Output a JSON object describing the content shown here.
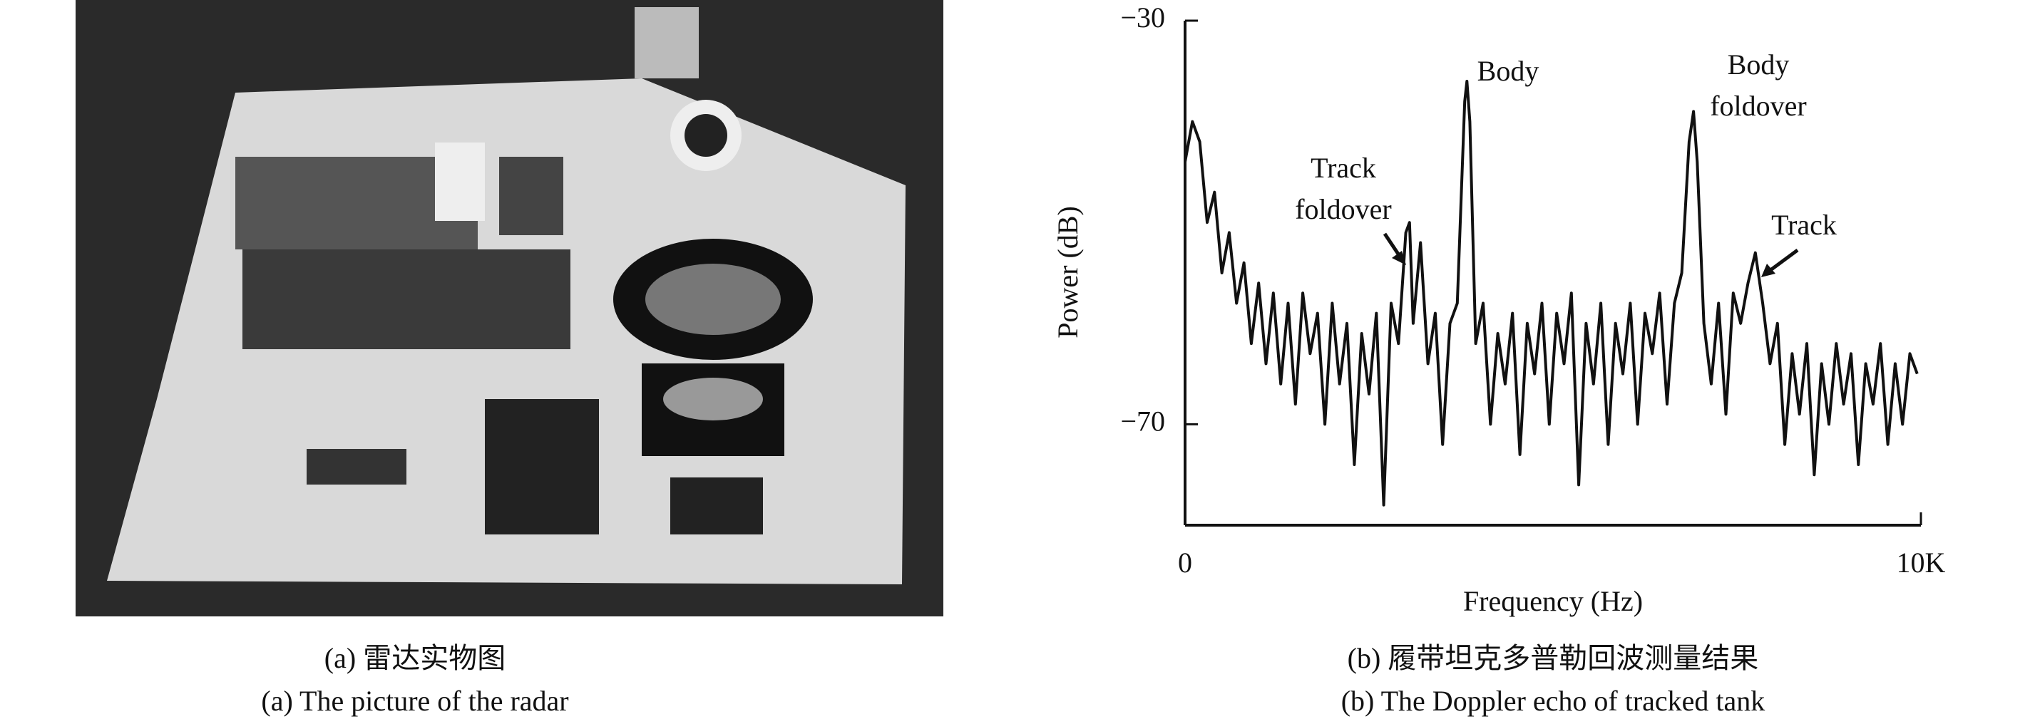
{
  "chart_data": {
    "type": "line",
    "y_label": "Power (dB)",
    "x_label": "Frequency (Hz)",
    "x": [
      0,
      100,
      200,
      300,
      400,
      500,
      600,
      700,
      800,
      900,
      1000,
      1100,
      1200,
      1300,
      1400,
      1500,
      1600,
      1700,
      1800,
      1900,
      2000,
      2100,
      2200,
      2300,
      2400,
      2500,
      2600,
      2700,
      2800,
      2900,
      3000,
      3050,
      3100,
      3200,
      3300,
      3400,
      3500,
      3600,
      3700,
      3800,
      3830,
      3870,
      3950,
      4050,
      4150,
      4250,
      4350,
      4450,
      4550,
      4650,
      4750,
      4850,
      4950,
      5050,
      5150,
      5250,
      5350,
      5450,
      5550,
      5650,
      5750,
      5850,
      5950,
      6050,
      6150,
      6250,
      6350,
      6450,
      6550,
      6650,
      6750,
      6850,
      6910,
      6960,
      7050,
      7150,
      7250,
      7350,
      7450,
      7550,
      7650,
      7750,
      7850,
      7950,
      8050,
      8150,
      8250,
      8350,
      8450,
      8550,
      8650,
      8750,
      8850,
      8950,
      9050,
      9150,
      9250,
      9350,
      9450,
      9550,
      9650,
      9750,
      9850,
      9950
    ],
    "series": [
      {
        "color": "#111111",
        "values": [
          -44,
          -40,
          -42,
          -50,
          -47,
          -55,
          -51,
          -58,
          -54,
          -62,
          -56,
          -64,
          -57,
          -66,
          -58,
          -68,
          -57,
          -63,
          -59,
          -70,
          -58,
          -66,
          -60,
          -74,
          -61,
          -67,
          -59,
          -78,
          -58,
          -62,
          -51,
          -50,
          -60,
          -52,
          -64,
          -59,
          -72,
          -60,
          -58,
          -38,
          -36,
          -40,
          -62,
          -58,
          -70,
          -61,
          -66,
          -59,
          -73,
          -60,
          -65,
          -58,
          -70,
          -59,
          -64,
          -57,
          -76,
          -60,
          -66,
          -58,
          -72,
          -60,
          -65,
          -58,
          -70,
          -59,
          -63,
          -57,
          -68,
          -58,
          -55,
          -42,
          -39,
          -44,
          -60,
          -66,
          -58,
          -69,
          -57,
          -60,
          -56,
          -53,
          -58,
          -64,
          -60,
          -72,
          -63,
          -69,
          -62,
          -75,
          -64,
          -70,
          -62,
          -68,
          -63,
          -74,
          -64,
          -68,
          -62,
          -72,
          -64,
          -70,
          -63,
          -65
        ]
      }
    ],
    "xlim": [
      0,
      10000
    ],
    "ylim": [
      -80,
      -30
    ],
    "xticks": [
      0,
      {
        "value": 10000,
        "label": "10K"
      }
    ],
    "yticks": [
      {
        "value": -30,
        "label": "−30"
      },
      {
        "value": -70,
        "label": "−70"
      }
    ],
    "annotations": [
      {
        "lines": [
          "Body"
        ]
      },
      {
        "lines": [
          "Body",
          "foldover"
        ]
      },
      {
        "lines": [
          "Track",
          "foldover"
        ]
      },
      {
        "lines": [
          "Track"
        ]
      }
    ]
  },
  "captions": {
    "a": [
      "(a) 雷达实物图",
      "(a) The picture of the radar"
    ],
    "b": [
      "(b) 履带坦克多普勒回波测量结果",
      "(b) The Doppler echo of tracked tank"
    ]
  }
}
